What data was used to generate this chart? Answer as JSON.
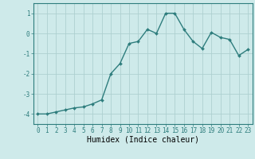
{
  "x": [
    0,
    1,
    2,
    3,
    4,
    5,
    6,
    7,
    8,
    9,
    10,
    11,
    12,
    13,
    14,
    15,
    16,
    17,
    18,
    19,
    20,
    21,
    22,
    23
  ],
  "y": [
    -4.0,
    -4.0,
    -3.9,
    -3.8,
    -3.7,
    -3.65,
    -3.5,
    -3.3,
    -2.0,
    -1.5,
    -0.5,
    -0.4,
    0.2,
    0.0,
    1.0,
    1.0,
    0.2,
    -0.4,
    -0.75,
    0.05,
    -0.2,
    -0.3,
    -1.1,
    -0.8
  ],
  "line_color": "#2e7d7d",
  "marker": "D",
  "marker_size": 2.0,
  "bg_color": "#ceeaea",
  "grid_color": "#aed0d0",
  "xlabel": "Humidex (Indice chaleur)",
  "xlabel_fontsize": 7,
  "ylim": [
    -4.5,
    1.5
  ],
  "xlim": [
    -0.5,
    23.5
  ],
  "yticks": [
    -4,
    -3,
    -2,
    -1,
    0,
    1
  ],
  "xticks": [
    0,
    1,
    2,
    3,
    4,
    5,
    6,
    7,
    8,
    9,
    10,
    11,
    12,
    13,
    14,
    15,
    16,
    17,
    18,
    19,
    20,
    21,
    22,
    23
  ],
  "tick_fontsize": 5.5,
  "linewidth": 1.0
}
